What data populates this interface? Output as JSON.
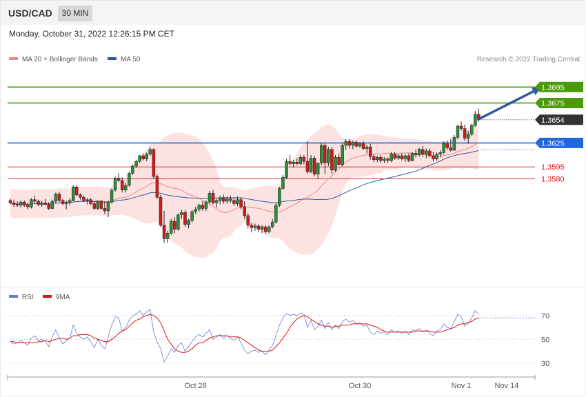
{
  "header": {
    "symbol": "USD/CAD",
    "timeframe": "30 MIN",
    "datetime": "Monday, October 31, 2022 12:26:15 PM CET"
  },
  "legend": {
    "ma20": {
      "label": "MA 20 + Bollinger Bands",
      "color": "#f08585"
    },
    "ma50": {
      "label": "MA 50",
      "color": "#2c5aa0"
    },
    "rsi": {
      "label": "RSI",
      "color": "#5b7fd6"
    },
    "ma9": {
      "label": "9MA",
      "color": "#dd1111"
    }
  },
  "copyright": "Research © 2022 Trading Central",
  "chart_data": [
    {
      "type": "candlestick",
      "pane": "price",
      "ylim": [
        1.3445,
        1.3722
      ],
      "levels": [
        {
          "value": 1.3695,
          "label": "1.3695",
          "color": "#4a9a0a",
          "kind": "resistance"
        },
        {
          "value": 1.3675,
          "label": "1.3675",
          "color": "#4a9a0a",
          "kind": "resistance"
        },
        {
          "value": 1.3654,
          "label": "1.3654",
          "color": "#333333",
          "kind": "last"
        },
        {
          "value": 1.3625,
          "label": "1.3625",
          "color": "#2266dd",
          "kind": "pivot"
        },
        {
          "value": 1.3595,
          "label": "1.3595",
          "color": "#dd1111",
          "kind": "support"
        },
        {
          "value": 1.358,
          "label": "1.3580",
          "color": "#dd1111",
          "kind": "support"
        }
      ],
      "arrow": {
        "from": [
          136,
          1.3654
        ],
        "to": [
          146,
          1.3695
        ]
      },
      "x_ticks": [
        {
          "label": "Oct 28",
          "index": 53
        },
        {
          "label": "Oct 30",
          "index": 100
        },
        {
          "label": "Nov 1",
          "index": 129
        },
        {
          "label": "Nov 14",
          "index": 142
        }
      ],
      "candles": [
        [
          1.3553,
          1.3555,
          1.3548,
          1.355
        ],
        [
          1.355,
          1.3554,
          1.3545,
          1.3548
        ],
        [
          1.3548,
          1.3552,
          1.3545,
          1.3547
        ],
        [
          1.3547,
          1.3553,
          1.3544,
          1.3551
        ],
        [
          1.3551,
          1.3553,
          1.3545,
          1.3547
        ],
        [
          1.3547,
          1.355,
          1.3542,
          1.3545
        ],
        [
          1.3545,
          1.3556,
          1.3543,
          1.3554
        ],
        [
          1.3554,
          1.3559,
          1.355,
          1.3552
        ],
        [
          1.3552,
          1.3554,
          1.3546,
          1.3548
        ],
        [
          1.3548,
          1.3552,
          1.3545,
          1.355
        ],
        [
          1.355,
          1.3555,
          1.3547,
          1.3548
        ],
        [
          1.3548,
          1.3551,
          1.3541,
          1.3543
        ],
        [
          1.3543,
          1.3554,
          1.3542,
          1.3552
        ],
        [
          1.3552,
          1.3563,
          1.355,
          1.3561
        ],
        [
          1.3561,
          1.3564,
          1.3551,
          1.3553
        ],
        [
          1.3553,
          1.3555,
          1.3547,
          1.3549
        ],
        [
          1.3549,
          1.3553,
          1.3542,
          1.3551
        ],
        [
          1.3551,
          1.3556,
          1.3547,
          1.3553
        ],
        [
          1.3553,
          1.3572,
          1.3552,
          1.357
        ],
        [
          1.357,
          1.3572,
          1.3558,
          1.356
        ],
        [
          1.356,
          1.3562,
          1.3554,
          1.3557
        ],
        [
          1.3557,
          1.3559,
          1.3551,
          1.3553
        ],
        [
          1.3553,
          1.3556,
          1.3548,
          1.3554
        ],
        [
          1.3554,
          1.3556,
          1.3547,
          1.3549
        ],
        [
          1.3549,
          1.3551,
          1.3541,
          1.3543
        ],
        [
          1.3543,
          1.3553,
          1.3541,
          1.3552
        ],
        [
          1.3552,
          1.3554,
          1.3541,
          1.3543
        ],
        [
          1.3543,
          1.3552,
          1.3536,
          1.354
        ],
        [
          1.354,
          1.3553,
          1.3532,
          1.3551
        ],
        [
          1.3551,
          1.3568,
          1.3549,
          1.3566
        ],
        [
          1.3566,
          1.3583,
          1.3564,
          1.3581
        ],
        [
          1.3581,
          1.3587,
          1.3576,
          1.3578
        ],
        [
          1.3578,
          1.3582,
          1.3563,
          1.3566
        ],
        [
          1.3566,
          1.3575,
          1.3563,
          1.3572
        ],
        [
          1.3572,
          1.3589,
          1.357,
          1.3587
        ],
        [
          1.3587,
          1.3598,
          1.3585,
          1.3596
        ],
        [
          1.3596,
          1.3604,
          1.3594,
          1.3602
        ],
        [
          1.3602,
          1.361,
          1.36,
          1.3609
        ],
        [
          1.3609,
          1.3612,
          1.3603,
          1.3605
        ],
        [
          1.3605,
          1.3613,
          1.3602,
          1.3611
        ],
        [
          1.3611,
          1.362,
          1.3609,
          1.3617
        ],
        [
          1.3617,
          1.3618,
          1.358,
          1.3583
        ],
        [
          1.3583,
          1.3586,
          1.3555,
          1.3557
        ],
        [
          1.3557,
          1.356,
          1.352,
          1.3522
        ],
        [
          1.3522,
          1.354,
          1.35,
          1.3505
        ],
        [
          1.3505,
          1.3515,
          1.35,
          1.3512
        ],
        [
          1.3512,
          1.353,
          1.351,
          1.3527
        ],
        [
          1.3527,
          1.3532,
          1.3512,
          1.3517
        ],
        [
          1.3517,
          1.3537,
          1.3515,
          1.3535
        ],
        [
          1.3535,
          1.3541,
          1.353,
          1.3538
        ],
        [
          1.3538,
          1.3541,
          1.352,
          1.3523
        ],
        [
          1.3523,
          1.353,
          1.3518,
          1.3528
        ],
        [
          1.3528,
          1.3541,
          1.3525,
          1.3539
        ],
        [
          1.3539,
          1.3545,
          1.3536,
          1.3542
        ],
        [
          1.3542,
          1.3549,
          1.3539,
          1.3547
        ],
        [
          1.3547,
          1.3552,
          1.354,
          1.3543
        ],
        [
          1.3543,
          1.3553,
          1.354,
          1.3551
        ],
        [
          1.3551,
          1.3565,
          1.3549,
          1.3562
        ],
        [
          1.3562,
          1.3566,
          1.3548,
          1.355
        ],
        [
          1.355,
          1.3555,
          1.3544,
          1.3553
        ],
        [
          1.3553,
          1.3559,
          1.3548,
          1.3556
        ],
        [
          1.3556,
          1.356,
          1.3549,
          1.3552
        ],
        [
          1.3552,
          1.3558,
          1.3549,
          1.3555
        ],
        [
          1.3555,
          1.3559,
          1.355,
          1.3553
        ],
        [
          1.3553,
          1.3557,
          1.3546,
          1.3549
        ],
        [
          1.3549,
          1.3558,
          1.3546,
          1.3554
        ],
        [
          1.3554,
          1.3557,
          1.3542,
          1.3545
        ],
        [
          1.3545,
          1.3552,
          1.353,
          1.3534
        ],
        [
          1.3534,
          1.3537,
          1.3518,
          1.3522
        ],
        [
          1.3522,
          1.3525,
          1.3513,
          1.3519
        ],
        [
          1.3519,
          1.3524,
          1.3515,
          1.3521
        ],
        [
          1.3521,
          1.3523,
          1.3513,
          1.3517
        ],
        [
          1.3517,
          1.3522,
          1.3512,
          1.352
        ],
        [
          1.352,
          1.3522,
          1.3511,
          1.3514
        ],
        [
          1.3514,
          1.3522,
          1.3512,
          1.352
        ],
        [
          1.352,
          1.353,
          1.3518,
          1.3526
        ],
        [
          1.3526,
          1.355,
          1.3524,
          1.3547
        ],
        [
          1.3547,
          1.357,
          1.3545,
          1.3568
        ],
        [
          1.3568,
          1.3585,
          1.3566,
          1.3582
        ],
        [
          1.3582,
          1.3605,
          1.358,
          1.3602
        ],
        [
          1.3602,
          1.361,
          1.3596,
          1.3599
        ],
        [
          1.3599,
          1.3604,
          1.3594,
          1.3601
        ],
        [
          1.3601,
          1.3606,
          1.3597,
          1.3599
        ],
        [
          1.3599,
          1.361,
          1.3597,
          1.3607
        ],
        [
          1.3607,
          1.361,
          1.3598,
          1.3602
        ],
        [
          1.3602,
          1.3627,
          1.3586,
          1.3589
        ],
        [
          1.3589,
          1.361,
          1.3587,
          1.3606
        ],
        [
          1.3606,
          1.3609,
          1.3583,
          1.3586
        ],
        [
          1.3586,
          1.36,
          1.358,
          1.36
        ],
        [
          1.36,
          1.3625,
          1.3597,
          1.3622
        ],
        [
          1.3622,
          1.3625,
          1.3586,
          1.36
        ],
        [
          1.36,
          1.362,
          1.3596,
          1.3617
        ],
        [
          1.3617,
          1.362,
          1.3586,
          1.3591
        ],
        [
          1.3591,
          1.361,
          1.3589,
          1.3607
        ],
        [
          1.3607,
          1.3612,
          1.3597,
          1.3598
        ],
        [
          1.3598,
          1.3625,
          1.3596,
          1.3622
        ],
        [
          1.3622,
          1.363,
          1.3616,
          1.3627
        ],
        [
          1.3627,
          1.363,
          1.3618,
          1.3622
        ],
        [
          1.3622,
          1.3628,
          1.3617,
          1.3626
        ],
        [
          1.3626,
          1.3628,
          1.3619,
          1.3621
        ],
        [
          1.3621,
          1.3626,
          1.3619,
          1.3624
        ],
        [
          1.3624,
          1.3627,
          1.3616,
          1.3618
        ],
        [
          1.3618,
          1.3623,
          1.3612,
          1.362
        ],
        [
          1.362,
          1.3624,
          1.3604,
          1.3608
        ],
        [
          1.3608,
          1.3611,
          1.3601,
          1.3604
        ],
        [
          1.3604,
          1.3609,
          1.3601,
          1.3607
        ],
        [
          1.3607,
          1.361,
          1.36,
          1.3603
        ],
        [
          1.3603,
          1.3607,
          1.36,
          1.3605
        ],
        [
          1.3605,
          1.3607,
          1.36,
          1.3603
        ],
        [
          1.3603,
          1.3614,
          1.3601,
          1.3611
        ],
        [
          1.3611,
          1.3614,
          1.3604,
          1.3606
        ],
        [
          1.3606,
          1.3611,
          1.3604,
          1.3609
        ],
        [
          1.3609,
          1.3612,
          1.3603,
          1.3605
        ],
        [
          1.3605,
          1.3611,
          1.3601,
          1.3609
        ],
        [
          1.3609,
          1.3612,
          1.3601,
          1.3603
        ],
        [
          1.3603,
          1.3614,
          1.3602,
          1.3612
        ],
        [
          1.3612,
          1.3617,
          1.3607,
          1.361
        ],
        [
          1.361,
          1.3619,
          1.3608,
          1.3617
        ],
        [
          1.3617,
          1.3621,
          1.3608,
          1.3611
        ],
        [
          1.3611,
          1.3618,
          1.3606,
          1.3615
        ],
        [
          1.3615,
          1.3618,
          1.3607,
          1.3609
        ],
        [
          1.3609,
          1.3614,
          1.3602,
          1.3605
        ],
        [
          1.3605,
          1.3613,
          1.3603,
          1.3611
        ],
        [
          1.3611,
          1.3616,
          1.3607,
          1.3613
        ],
        [
          1.3613,
          1.3627,
          1.3611,
          1.3624
        ],
        [
          1.3624,
          1.3628,
          1.3616,
          1.3619
        ],
        [
          1.3619,
          1.363,
          1.3614,
          1.3616
        ],
        [
          1.3616,
          1.3635,
          1.3615,
          1.3632
        ],
        [
          1.3632,
          1.3648,
          1.363,
          1.3646
        ],
        [
          1.3646,
          1.3652,
          1.364,
          1.3643
        ],
        [
          1.3643,
          1.3648,
          1.3628,
          1.3631
        ],
        [
          1.3631,
          1.364,
          1.3624,
          1.3636
        ],
        [
          1.3636,
          1.3649,
          1.3634,
          1.3647
        ],
        [
          1.3647,
          1.3665,
          1.3645,
          1.3661
        ],
        [
          1.3661,
          1.3668,
          1.3652,
          1.3654
        ]
      ]
    },
    {
      "type": "line",
      "pane": "rsi",
      "ylim": [
        20,
        78
      ],
      "reference_levels": [
        70,
        50,
        30
      ],
      "yticks": [
        "70",
        "50",
        "30"
      ],
      "series": [
        {
          "name": "RSI",
          "values": [
            48,
            46,
            47,
            49,
            47,
            45,
            51,
            53,
            49,
            50,
            48,
            44,
            52,
            58,
            51,
            46,
            49,
            51,
            62,
            55,
            52,
            50,
            52,
            48,
            43,
            50,
            45,
            42,
            52,
            62,
            69,
            68,
            57,
            60,
            66,
            70,
            71,
            74,
            70,
            73,
            75,
            56,
            48,
            42,
            31,
            36,
            42,
            39,
            45,
            47,
            40,
            44,
            48,
            52,
            54,
            52,
            55,
            58,
            50,
            52,
            54,
            51,
            53,
            51,
            49,
            52,
            47,
            41,
            38,
            40,
            41,
            39,
            40,
            37,
            41,
            45,
            53,
            62,
            68,
            72,
            70,
            71,
            70,
            72,
            71,
            60,
            66,
            58,
            61,
            66,
            59,
            64,
            58,
            62,
            59,
            65,
            67,
            64,
            66,
            63,
            64,
            61,
            62,
            56,
            54,
            57,
            55,
            56,
            54,
            58,
            56,
            57,
            55,
            57,
            54,
            58,
            57,
            59,
            56,
            58,
            55,
            53,
            57,
            58,
            63,
            60,
            59,
            65,
            71,
            69,
            61,
            63,
            68,
            74,
            71
          ]
        },
        {
          "name": "9MA",
          "values": [
            48,
            48,
            47,
            47,
            47,
            47,
            47,
            47,
            48,
            48,
            49,
            48,
            49,
            50,
            51,
            51,
            50,
            51,
            53,
            53,
            54,
            54,
            54,
            53,
            51,
            50,
            49,
            48,
            48,
            50,
            52,
            55,
            57,
            58,
            61,
            64,
            66,
            67,
            69,
            70,
            71,
            70,
            68,
            64,
            57,
            50,
            46,
            42,
            40,
            39,
            39,
            40,
            42,
            45,
            47,
            47,
            49,
            51,
            52,
            53,
            53,
            53,
            53,
            52,
            52,
            52,
            51,
            49,
            47,
            45,
            43,
            41,
            40,
            40,
            40,
            41,
            44,
            47,
            51,
            55,
            60,
            64,
            67,
            69,
            70,
            69,
            67,
            65,
            63,
            62,
            61,
            61,
            60,
            61,
            61,
            62,
            62,
            62,
            63,
            63,
            63,
            63,
            63,
            62,
            61,
            60,
            58,
            57,
            56,
            56,
            56,
            56,
            56,
            56,
            56,
            56,
            57,
            57,
            57,
            57,
            57,
            56,
            56,
            56,
            57,
            58,
            59,
            60,
            62,
            63,
            63,
            64,
            65,
            67,
            68
          ]
        }
      ]
    }
  ]
}
